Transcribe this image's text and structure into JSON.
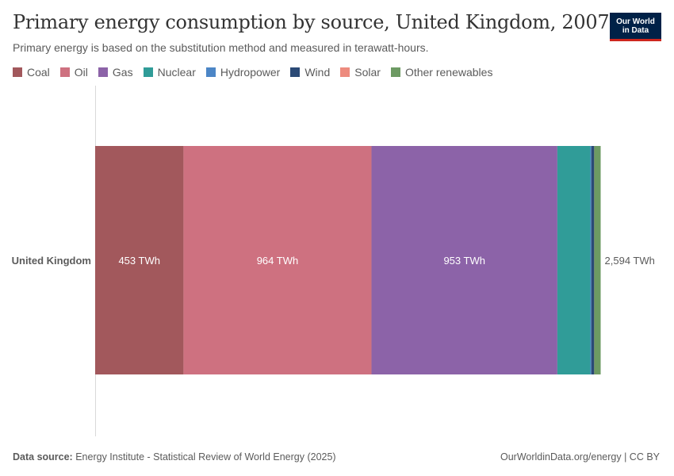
{
  "header": {
    "title": "Primary energy consumption by source, United Kingdom, 2007",
    "subtitle": "Primary energy is based on the substitution method and measured in terawatt-hours.",
    "logo_line1": "Our World",
    "logo_line2": "in Data"
  },
  "footer": {
    "source_label": "Data source:",
    "source_text": " Energy Institute - Statistical Review of World Energy (2025)",
    "link_text": "OurWorldinData.org/energy | CC BY"
  },
  "chart_data": {
    "type": "bar",
    "orientation": "horizontal",
    "stacked": true,
    "title": "Primary energy consumption by source, United Kingdom, 2007",
    "subtitle": "Primary energy is based on the substitution method and measured in terawatt-hours.",
    "unit": "TWh",
    "categories": [
      "United Kingdom"
    ],
    "legend_position": "top-left",
    "grid": false,
    "series": [
      {
        "name": "Coal",
        "color": "#a2585c",
        "values": [
          453
        ],
        "label": "453 TWh"
      },
      {
        "name": "Oil",
        "color": "#ce7180",
        "values": [
          964
        ],
        "label": "964 TWh"
      },
      {
        "name": "Gas",
        "color": "#8c63a8",
        "values": [
          953
        ],
        "label": "953 TWh"
      },
      {
        "name": "Nuclear",
        "color": "#309c98",
        "values": [
          169
        ],
        "label": ""
      },
      {
        "name": "Hydropower",
        "color": "#4c86c6",
        "values": [
          5
        ],
        "label": ""
      },
      {
        "name": "Wind",
        "color": "#2b4a76",
        "values": [
          15
        ],
        "label": ""
      },
      {
        "name": "Solar",
        "color": "#ed8b7e",
        "values": [
          0.04
        ],
        "label": ""
      },
      {
        "name": "Other renewables",
        "color": "#6d9a63",
        "values": [
          33
        ],
        "label": ""
      }
    ],
    "total_label": "2,594 TWh",
    "xlim": [
      0,
      2594
    ]
  }
}
